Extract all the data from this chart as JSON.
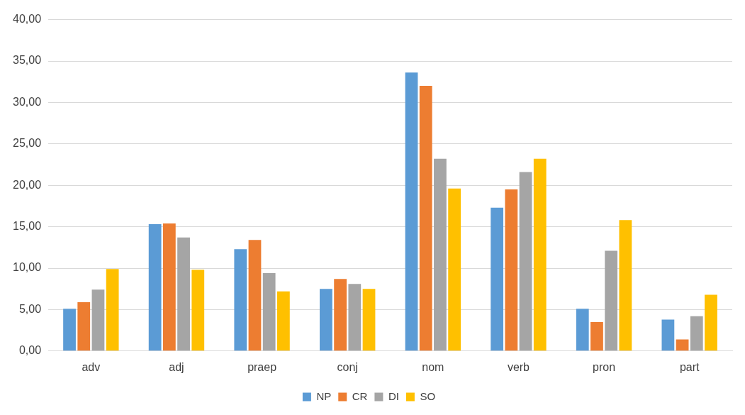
{
  "chart_data": {
    "type": "bar",
    "categories": [
      "adv",
      "adj",
      "praep",
      "conj",
      "nom",
      "verb",
      "pron",
      "part"
    ],
    "series": [
      {
        "name": "NP",
        "color": "#5b9bd5",
        "values": [
          5.1,
          15.3,
          12.3,
          7.5,
          33.6,
          17.3,
          5.1,
          3.8
        ]
      },
      {
        "name": "CR",
        "color": "#ed7d31",
        "values": [
          5.9,
          15.4,
          13.4,
          8.7,
          32.0,
          19.5,
          3.5,
          1.4
        ]
      },
      {
        "name": "DI",
        "color": "#a5a5a5",
        "values": [
          7.4,
          13.7,
          9.4,
          8.1,
          23.2,
          21.6,
          12.1,
          4.2
        ]
      },
      {
        "name": "SO",
        "color": "#ffc000",
        "values": [
          9.9,
          9.8,
          7.2,
          7.5,
          19.6,
          23.2,
          15.8,
          6.8
        ]
      }
    ],
    "ylim": [
      0,
      40
    ],
    "yticks": [
      {
        "value": 0,
        "label": "0,00"
      },
      {
        "value": 5,
        "label": "5,00"
      },
      {
        "value": 10,
        "label": "10,00"
      },
      {
        "value": 15,
        "label": "15,00"
      },
      {
        "value": 20,
        "label": "20,00"
      },
      {
        "value": 25,
        "label": "25,00"
      },
      {
        "value": 30,
        "label": "30,00"
      },
      {
        "value": 35,
        "label": "35,00"
      },
      {
        "value": 40,
        "label": "40,00"
      }
    ],
    "grid": "y",
    "legend": "bottom"
  }
}
